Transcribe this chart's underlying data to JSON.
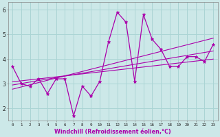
{
  "x": [
    0,
    1,
    2,
    3,
    4,
    5,
    6,
    7,
    8,
    9,
    10,
    11,
    12,
    13,
    14,
    15,
    16,
    17,
    18,
    19,
    20,
    21,
    22,
    23
  ],
  "y_main": [
    3.7,
    3.0,
    2.9,
    3.2,
    2.6,
    3.2,
    3.2,
    1.7,
    2.9,
    2.5,
    3.1,
    4.7,
    5.9,
    5.5,
    3.1,
    5.8,
    4.8,
    4.4,
    3.7,
    3.7,
    4.1,
    4.1,
    3.9,
    4.6
  ],
  "y_reg1": [
    2.78,
    2.87,
    2.96,
    3.05,
    3.14,
    3.23,
    3.32,
    3.41,
    3.5,
    3.59,
    3.68,
    3.77,
    3.86,
    3.95,
    4.04,
    4.13,
    4.22,
    4.31,
    4.4,
    4.49,
    4.58,
    4.67,
    4.76,
    4.85
  ],
  "y_reg2": [
    2.95,
    3.01,
    3.07,
    3.13,
    3.19,
    3.25,
    3.31,
    3.37,
    3.43,
    3.49,
    3.55,
    3.61,
    3.67,
    3.73,
    3.79,
    3.85,
    3.91,
    3.97,
    4.03,
    4.09,
    4.15,
    4.21,
    4.27,
    4.33
  ],
  "y_reg3": [
    3.08,
    3.12,
    3.16,
    3.2,
    3.24,
    3.28,
    3.32,
    3.36,
    3.4,
    3.44,
    3.48,
    3.52,
    3.56,
    3.6,
    3.64,
    3.68,
    3.72,
    3.76,
    3.8,
    3.84,
    3.88,
    3.92,
    3.96,
    4.0
  ],
  "line_color": "#aa00aa",
  "bg_color": "#cce8e8",
  "grid_color": "#aad4d4",
  "xlabel": "Windchill (Refroidissement éolien,°C)",
  "ylim": [
    1.5,
    6.3
  ],
  "xlim": [
    -0.5,
    23.5
  ],
  "yticks": [
    2,
    3,
    4,
    5,
    6
  ],
  "xticks": [
    0,
    1,
    2,
    3,
    4,
    5,
    6,
    7,
    8,
    9,
    10,
    11,
    12,
    13,
    14,
    15,
    16,
    17,
    18,
    19,
    20,
    21,
    22,
    23
  ]
}
